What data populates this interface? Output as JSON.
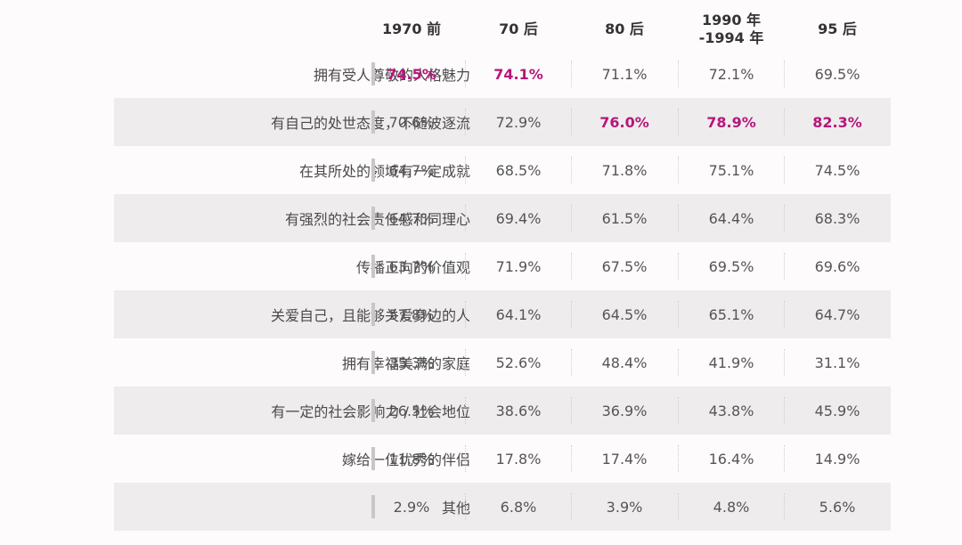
{
  "chart_data": {
    "type": "table",
    "columns": [
      "1970 前",
      "70 后",
      "80 后",
      "1990 年\n-1994 年",
      "95 后"
    ],
    "rows": [
      {
        "label": "拥有受人尊敬的人格魅力",
        "values": [
          "74.5%",
          "74.1%",
          "71.1%",
          "72.1%",
          "69.5%"
        ],
        "highlight": [
          true,
          true,
          false,
          false,
          false
        ]
      },
      {
        "label": "有自己的处世态度，不随波逐流",
        "values": [
          "70.6%",
          "72.9%",
          "76.0%",
          "78.9%",
          "82.3%"
        ],
        "highlight": [
          false,
          false,
          true,
          true,
          true
        ]
      },
      {
        "label": "在其所处的领域有一定成就",
        "values": [
          "64.7%",
          "68.5%",
          "71.8%",
          "75.1%",
          "74.5%"
        ],
        "highlight": [
          false,
          false,
          false,
          false,
          false
        ]
      },
      {
        "label": "有强烈的社会责任感和同理心",
        "values": [
          "64.7%",
          "69.4%",
          "61.5%",
          "64.4%",
          "68.3%"
        ],
        "highlight": [
          false,
          false,
          false,
          false,
          false
        ]
      },
      {
        "label": "传播正向的价值观",
        "values": [
          "63.7%",
          "71.9%",
          "67.5%",
          "69.5%",
          "69.6%"
        ],
        "highlight": [
          false,
          false,
          false,
          false,
          false
        ]
      },
      {
        "label": "关爱自己，且能够关爱身边的人",
        "values": [
          "57.8%",
          "64.1%",
          "64.5%",
          "65.1%",
          "64.7%"
        ],
        "highlight": [
          false,
          false,
          false,
          false,
          false
        ]
      },
      {
        "label": "拥有幸福美满的家庭",
        "values": [
          "35.3%",
          "52.6%",
          "48.4%",
          "41.9%",
          "31.1%"
        ],
        "highlight": [
          false,
          false,
          false,
          false,
          false
        ]
      },
      {
        "label": "有一定的社会影响力 / 社会地位",
        "values": [
          "26.5%",
          "38.6%",
          "36.9%",
          "43.8%",
          "45.9%"
        ],
        "highlight": [
          false,
          false,
          false,
          false,
          false
        ]
      },
      {
        "label": "嫁给一位优秀的伴侣",
        "values": [
          "11.8%",
          "17.8%",
          "17.4%",
          "16.4%",
          "14.9%"
        ],
        "highlight": [
          false,
          false,
          false,
          false,
          false
        ]
      },
      {
        "label": "其他",
        "values": [
          "2.9%",
          "6.8%",
          "3.9%",
          "4.8%",
          "5.6%"
        ],
        "highlight": [
          false,
          false,
          false,
          false,
          false
        ]
      }
    ],
    "colors": {
      "highlight": "#b5177a",
      "text": "#555555",
      "row_shade": "#efeced"
    }
  }
}
